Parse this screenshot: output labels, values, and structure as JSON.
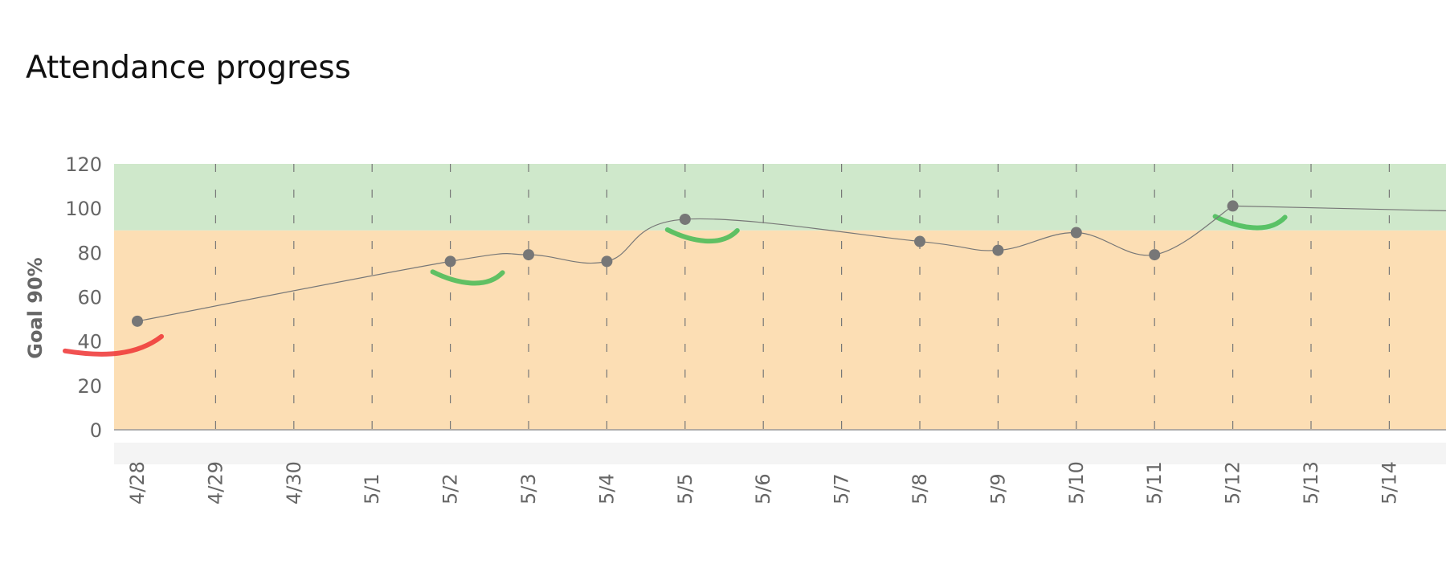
{
  "page": {
    "title": "Attendance progress"
  },
  "chart_data": {
    "type": "line",
    "title": "Attendance progress",
    "ylabel": "Goal 90%",
    "xlabel": "",
    "ylim": [
      0,
      120
    ],
    "yticks": [
      "0",
      "20",
      "40",
      "60",
      "80",
      "100",
      "120"
    ],
    "goal": 90,
    "grid": "vertical dashed",
    "bands": [
      {
        "from": 0,
        "to": 90,
        "color": "#fcdeb4"
      },
      {
        "from": 90,
        "to": 120,
        "color": "#cfe8cb"
      }
    ],
    "categories": [
      "4/28",
      "4/29",
      "4/30",
      "5/1",
      "5/2",
      "5/3",
      "5/4",
      "5/5",
      "5/6",
      "5/7",
      "5/8",
      "5/9",
      "5/10",
      "5/11",
      "5/12",
      "5/13",
      "5/14"
    ],
    "series": [
      {
        "values": [
          49,
          null,
          null,
          null,
          76,
          79,
          76,
          95,
          null,
          null,
          85,
          81,
          89,
          79,
          101,
          null,
          null
        ],
        "color": "#777777"
      }
    ],
    "trend_marks": [
      {
        "category": "4/28",
        "trend": "down",
        "color": "#ee3333"
      },
      {
        "category": "5/2",
        "trend": "down",
        "color": "#44bb55"
      },
      {
        "category": "5/5",
        "trend": "down",
        "color": "#44bb55"
      },
      {
        "category": "5/12",
        "trend": "down",
        "color": "#44bb55"
      }
    ]
  }
}
